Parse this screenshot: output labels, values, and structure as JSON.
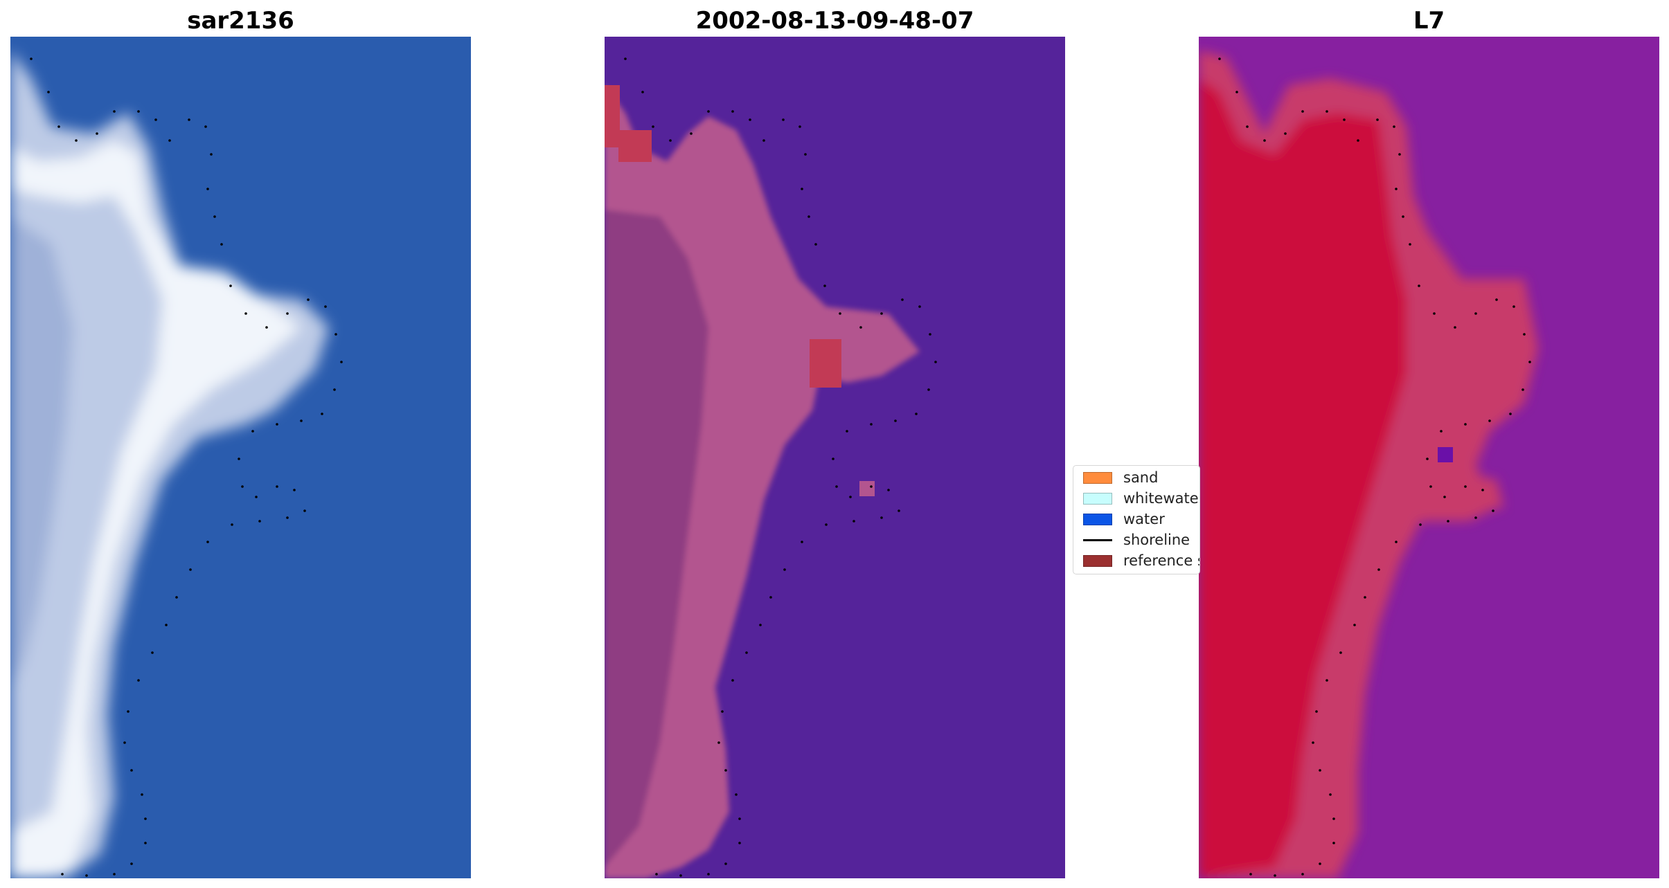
{
  "panels": [
    {
      "title": "sar2136"
    },
    {
      "title": "2002-08-13-09-48-07"
    },
    {
      "title": "L7"
    }
  ],
  "legend": {
    "items": [
      {
        "label": "sand",
        "color": "#ff8c3d",
        "kind": "patch"
      },
      {
        "label": "whitewater",
        "color": "#c7fdfd",
        "kind": "patch"
      },
      {
        "label": "water",
        "color": "#0b55e6",
        "kind": "patch"
      },
      {
        "label": "shoreline",
        "color": "#000000",
        "kind": "line"
      },
      {
        "label": "reference shoreline buffer",
        "color": "#9b3030",
        "kind": "patch"
      }
    ]
  },
  "colors": {
    "rgb_water": "#2a5cae",
    "rgb_land": "#c2d0ea",
    "rgb_surf": "#eef4fb",
    "class_water": "#55239a",
    "class_land": "#b3558f",
    "class_buffer": "#c23a55",
    "index_land": "#cc0e3c",
    "index_edge": "#c83a6a",
    "index_water": "#8720a0",
    "shoreline_dots": "#000000"
  }
}
